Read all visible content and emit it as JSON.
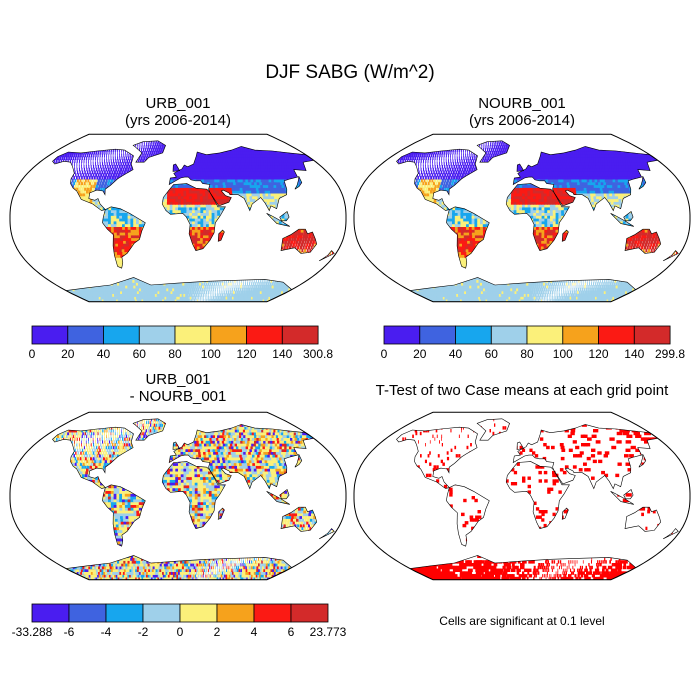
{
  "page": {
    "title": "DJF SABG (W/m^2)"
  },
  "chart_data": [
    {
      "type": "heatmap",
      "title": "URB_001",
      "subtitle": "(yrs 2006-2014)",
      "projection": "robinson",
      "colorbar": {
        "labels": [
          "0",
          "20",
          "40",
          "60",
          "80",
          "100",
          "120",
          "140",
          "300.8"
        ],
        "colors": [
          "#4a1df0",
          "#3f63e0",
          "#17a6ee",
          "#9fd0ea",
          "#fbf07a",
          "#f6a21c",
          "#fb1a14",
          "#d32a2a"
        ]
      }
    },
    {
      "type": "heatmap",
      "title": "NOURB_001",
      "subtitle": "(yrs 2006-2014)",
      "projection": "robinson",
      "colorbar": {
        "labels": [
          "0",
          "20",
          "40",
          "60",
          "80",
          "100",
          "120",
          "140",
          "299.8"
        ],
        "colors": [
          "#4a1df0",
          "#3f63e0",
          "#17a6ee",
          "#9fd0ea",
          "#fbf07a",
          "#f6a21c",
          "#fb1a14",
          "#d32a2a"
        ]
      }
    },
    {
      "type": "heatmap",
      "title": "URB_001",
      "subtitle": "- NOURB_001",
      "projection": "robinson",
      "colorbar": {
        "labels": [
          "-33.288",
          "-6",
          "-4",
          "-2",
          "0",
          "2",
          "4",
          "6",
          "23.773"
        ],
        "colors": [
          "#4a1df0",
          "#3f63e0",
          "#17a6ee",
          "#9fd0ea",
          "#fbf07a",
          "#f6a21c",
          "#fb1a14",
          "#d32a2a"
        ]
      }
    },
    {
      "type": "heatmap",
      "title": "T-Test of two Case means at each grid point",
      "projection": "robinson",
      "note": "Cells are significant at 0.1 level",
      "significant_color": "#ff0000"
    }
  ]
}
